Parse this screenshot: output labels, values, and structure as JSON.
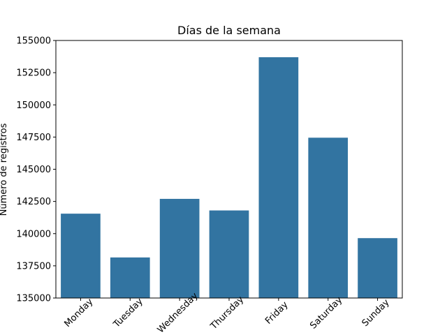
{
  "chart_data": {
    "type": "bar",
    "title": "Días de la semana",
    "xlabel": "",
    "ylabel": "Número de registros",
    "categories": [
      "Monday",
      "Tuesday",
      "Wednesday",
      "Thursday",
      "Friday",
      "Saturday",
      "Sunday"
    ],
    "values": [
      141550,
      138150,
      142700,
      141800,
      153700,
      147450,
      139650
    ],
    "ylim": [
      135000,
      155000
    ],
    "yticks": [
      "135000",
      "137500",
      "140000",
      "142500",
      "145000",
      "147500",
      "150000",
      "152500",
      "155000"
    ],
    "bar_color": "#3274a1",
    "grid": false,
    "x_tick_rotation_deg": 45
  }
}
